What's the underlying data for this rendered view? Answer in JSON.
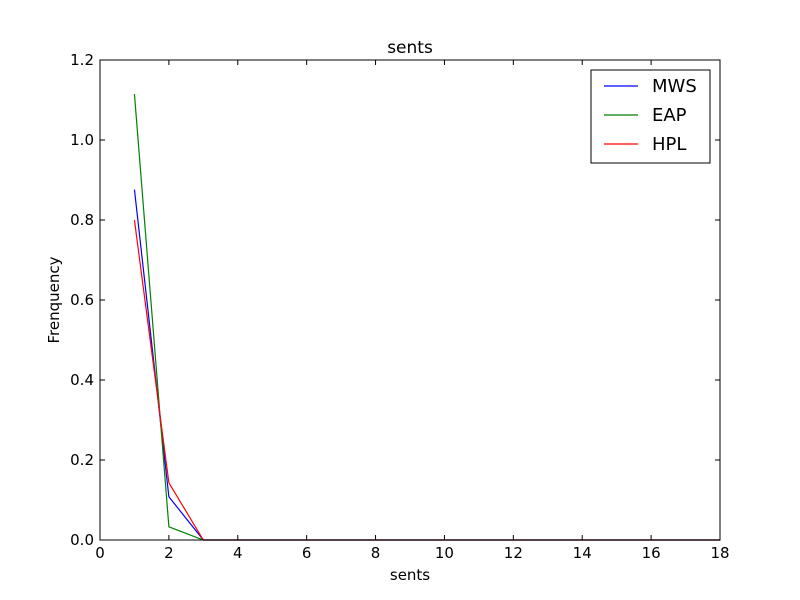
{
  "chart_data": {
    "type": "line",
    "title": "sents",
    "xlabel": "sents",
    "ylabel": "Frenquency",
    "xlim": [
      0,
      18
    ],
    "ylim": [
      0,
      1.2
    ],
    "x_ticks": [
      0,
      2,
      4,
      6,
      8,
      10,
      12,
      14,
      16,
      18
    ],
    "y_ticks": [
      0.0,
      0.2,
      0.4,
      0.6,
      0.8,
      1.0,
      1.2
    ],
    "x_tick_labels": [
      "0",
      "2",
      "4",
      "6",
      "8",
      "10",
      "12",
      "14",
      "16",
      "18"
    ],
    "y_tick_labels": [
      "0.0",
      "0.2",
      "0.4",
      "0.6",
      "0.8",
      "1.0",
      "1.2"
    ],
    "grid": false,
    "legend": "top-right",
    "x": [
      1,
      2,
      3,
      4,
      5,
      6,
      7,
      8,
      9,
      10,
      11,
      12,
      13,
      14,
      15,
      16,
      17,
      18
    ],
    "series": [
      {
        "name": "MWS",
        "color": "#0000ff",
        "values": [
          0.876,
          0.108,
          0,
          0,
          0,
          0,
          0,
          0,
          0,
          0,
          0,
          0,
          0,
          0,
          0,
          0,
          0,
          0
        ]
      },
      {
        "name": "EAP",
        "color": "#008000",
        "values": [
          1.115,
          0.033,
          0,
          0,
          0,
          0,
          0,
          0,
          0,
          0,
          0,
          0,
          0,
          0,
          0,
          0,
          0,
          0
        ]
      },
      {
        "name": "HPL",
        "color": "#ff0000",
        "values": [
          0.8,
          0.143,
          0,
          0,
          0,
          0,
          0,
          0,
          0,
          0,
          0,
          0,
          0,
          0,
          0,
          0,
          0,
          0
        ]
      }
    ]
  }
}
